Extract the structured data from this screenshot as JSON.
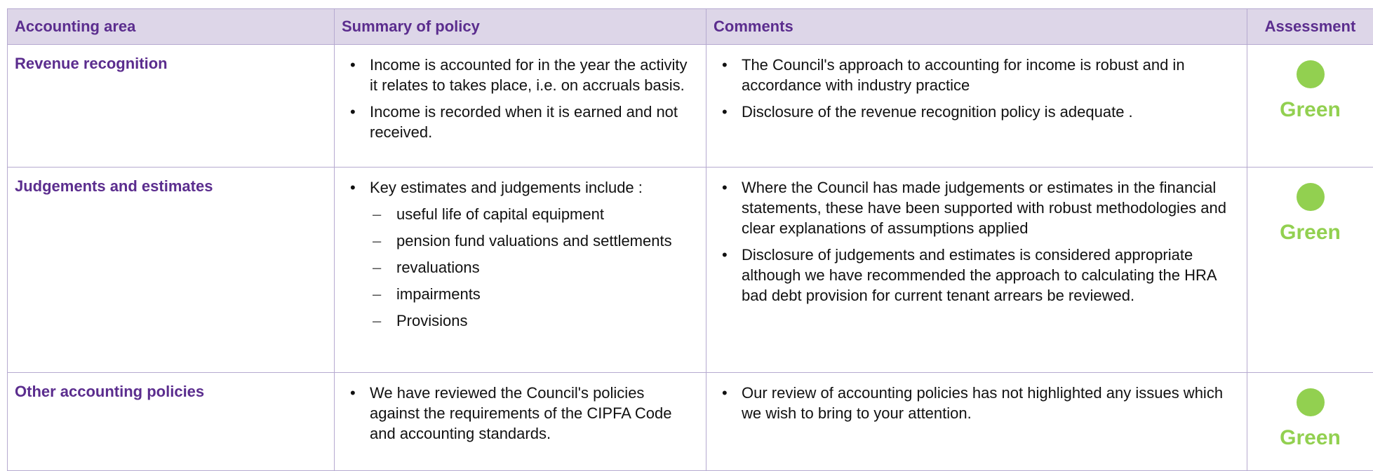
{
  "table": {
    "header": [
      "Accounting area",
      "Summary of policy",
      "Comments",
      "Assessment"
    ],
    "rows": [
      {
        "area": "Revenue recognition",
        "summary": [
          "Income is accounted for in the year the activity it relates to takes place, i.e. on accruals basis.",
          "Income is recorded when it is earned and not received."
        ],
        "comments": [
          "The Council's approach to accounting for income is robust and in accordance with industry practice",
          "Disclosure of the revenue recognition policy is adequate ."
        ],
        "assessment": "Green"
      },
      {
        "area": "Judgements and estimates",
        "summary": [
          "Key estimates and judgements include :"
        ],
        "subitems": [
          "useful life of capital equipment",
          "pension fund valuations and settlements",
          "revaluations",
          "impairments",
          "Provisions"
        ],
        "comments": [
          "Where the Council has made judgements or estimates in the financial statements, these have been supported with robust methodologies and clear explanations of assumptions applied",
          "Disclosure of judgements and estimates is considered appropriate although we have recommended the approach to calculating the HRA bad debt provision for current tenant arrears be reviewed."
        ],
        "assessment": "Green"
      },
      {
        "area": "Other accounting policies",
        "summary": [
          "We have reviewed the Council's policies against the requirements of the CIPFA Code and accounting standards."
        ],
        "comments": [
          "Our review of accounting policies has not highlighted any issues which we wish to bring to your attention."
        ],
        "assessment": "Green"
      }
    ]
  }
}
